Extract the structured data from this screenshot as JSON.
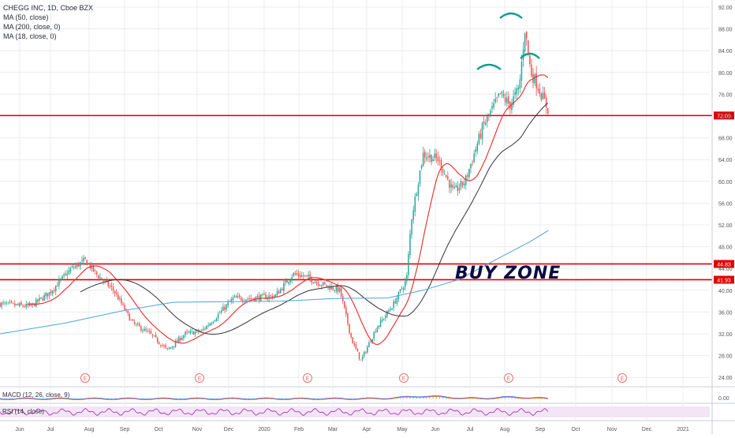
{
  "legend": {
    "symbol": "CHEGG INC, 1D, Cboe BZX",
    "ma50": "MA (50, close)",
    "ma200": "MA (200, close, 0)",
    "ma18": "MA (18, close, 0)"
  },
  "annotations": {
    "buy_zone": "BUY ZONE",
    "earnings_marker": "E"
  },
  "indicators": {
    "macd_label": "MACD (12, 26, close, 9)",
    "macd_value": "0.00",
    "rsi_label": "RSI (14, close)"
  },
  "colors": {
    "up": "#26a69a",
    "down": "#ef5350",
    "ma18": "#e53935",
    "ma50": "#333333",
    "ma200": "#4fa3d9",
    "level": "#e00000",
    "rsi": "#9c27b0",
    "grid": "#e9ecf1"
  },
  "chart_data": {
    "type": "candlestick",
    "y_axis_ticks": [
      "92.00",
      "88.00",
      "84.00",
      "80.00",
      "76.00",
      "72.00",
      "68.00",
      "64.00",
      "60.00",
      "56.00",
      "52.00",
      "48.00",
      "44.00",
      "40.00",
      "36.00",
      "32.00",
      "28.00",
      "24.00"
    ],
    "ylim": [
      22,
      93
    ],
    "x_tick_labels": [
      "Jun",
      "Jul",
      "Aug",
      "Sep",
      "Oct",
      "Nov",
      "Dec",
      "2020",
      "Feb",
      "Mar",
      "Apr",
      "May",
      "Jun",
      "Jul",
      "Aug",
      "Sep",
      "Oct",
      "Nov",
      "Dec",
      "2021"
    ],
    "horizontal_levels": [
      {
        "label": "72.09",
        "value": 72.09
      },
      {
        "label": "44.83",
        "value": 44.83
      },
      {
        "label": "41.93",
        "value": 41.93
      }
    ],
    "series_close": [
      {
        "date": "2019-05-20",
        "close": 37.5
      },
      {
        "date": "2019-06-15",
        "close": 37.0
      },
      {
        "date": "2019-07-01",
        "close": 39.5
      },
      {
        "date": "2019-07-20",
        "close": 44.0
      },
      {
        "date": "2019-08-01",
        "close": 45.5
      },
      {
        "date": "2019-08-10",
        "close": 43.0
      },
      {
        "date": "2019-08-25",
        "close": 40.0
      },
      {
        "date": "2019-09-10",
        "close": 34.0
      },
      {
        "date": "2019-09-25",
        "close": 32.0
      },
      {
        "date": "2019-10-10",
        "close": 29.0
      },
      {
        "date": "2019-10-25",
        "close": 32.0
      },
      {
        "date": "2019-11-08",
        "close": 32.5
      },
      {
        "date": "2019-11-20",
        "close": 35.0
      },
      {
        "date": "2019-12-05",
        "close": 38.5
      },
      {
        "date": "2019-12-20",
        "close": 38.5
      },
      {
        "date": "2020-01-10",
        "close": 39.0
      },
      {
        "date": "2020-01-25",
        "close": 43.0
      },
      {
        "date": "2020-02-05",
        "close": 42.5
      },
      {
        "date": "2020-02-20",
        "close": 41.0
      },
      {
        "date": "2020-03-05",
        "close": 40.0
      },
      {
        "date": "2020-03-15",
        "close": 31.0
      },
      {
        "date": "2020-03-23",
        "close": 27.0
      },
      {
        "date": "2020-04-05",
        "close": 33.0
      },
      {
        "date": "2020-04-20",
        "close": 37.5
      },
      {
        "date": "2020-05-01",
        "close": 42.0
      },
      {
        "date": "2020-05-05",
        "close": 53.0
      },
      {
        "date": "2020-05-15",
        "close": 65.0
      },
      {
        "date": "2020-05-28",
        "close": 64.0
      },
      {
        "date": "2020-06-10",
        "close": 58.0
      },
      {
        "date": "2020-06-20",
        "close": 60.0
      },
      {
        "date": "2020-07-05",
        "close": 70.0
      },
      {
        "date": "2020-07-20",
        "close": 76.0
      },
      {
        "date": "2020-07-28",
        "close": 74.0
      },
      {
        "date": "2020-08-05",
        "close": 77.0
      },
      {
        "date": "2020-08-10",
        "close": 88.0
      },
      {
        "date": "2020-08-15",
        "close": 80.0
      },
      {
        "date": "2020-08-20",
        "close": 78.0
      },
      {
        "date": "2020-08-26",
        "close": 75.0
      },
      {
        "date": "2020-08-30",
        "close": 73.0
      }
    ],
    "ma200_points": [
      {
        "date": "2019-05-20",
        "value": 32.0
      },
      {
        "date": "2019-07-15",
        "value": 34.0
      },
      {
        "date": "2019-09-01",
        "value": 36.2
      },
      {
        "date": "2019-10-15",
        "value": 37.8
      },
      {
        "date": "2019-12-01",
        "value": 37.9
      },
      {
        "date": "2020-01-15",
        "value": 38.0
      },
      {
        "date": "2020-03-01",
        "value": 38.5
      },
      {
        "date": "2020-04-15",
        "value": 38.6
      },
      {
        "date": "2020-05-15",
        "value": 40.0
      },
      {
        "date": "2020-06-15",
        "value": 42.0
      },
      {
        "date": "2020-07-15",
        "value": 45.5
      },
      {
        "date": "2020-08-15",
        "value": 49.0
      },
      {
        "date": "2020-08-30",
        "value": 51.0
      }
    ]
  }
}
